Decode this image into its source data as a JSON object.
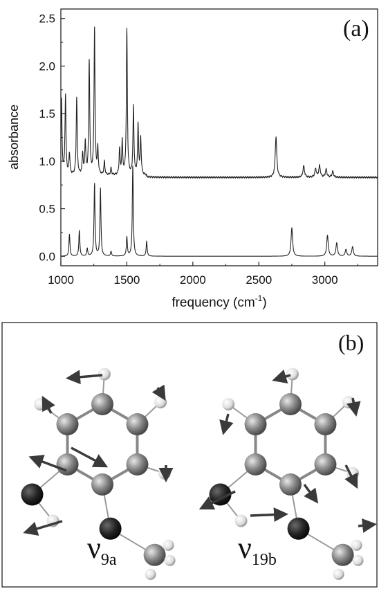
{
  "chart_data": {
    "type": "line",
    "panel_label": "(a)",
    "xlabel": "frequency (cm",
    "xlabel_superscript": "-1",
    "xlabel_suffix": ")",
    "ylabel": "absorbance",
    "xlim": [
      1000,
      3400
    ],
    "ylim": [
      -0.1,
      2.6
    ],
    "x_ticks": [
      1000,
      1500,
      2000,
      2500,
      3000
    ],
    "y_ticks": [
      0.0,
      0.5,
      1.0,
      1.5,
      2.0,
      2.5
    ],
    "x_tick_labels": [
      "1000",
      "1500",
      "2000",
      "2500",
      "3000"
    ],
    "y_tick_labels": [
      "0.0",
      "0.5",
      "1.0",
      "1.5",
      "2.0",
      "2.5"
    ],
    "grid": false,
    "legend": "none",
    "series": [
      {
        "baseline": 0.83,
        "color": "#222222",
        "peaks": [
          {
            "x": 1005,
            "y": 1.62
          },
          {
            "x": 1035,
            "y": 1.66
          },
          {
            "x": 1065,
            "y": 1.05
          },
          {
            "x": 1120,
            "y": 1.64
          },
          {
            "x": 1165,
            "y": 1.05
          },
          {
            "x": 1185,
            "y": 1.17
          },
          {
            "x": 1215,
            "y": 2.02
          },
          {
            "x": 1255,
            "y": 2.37
          },
          {
            "x": 1280,
            "y": 1.1
          },
          {
            "x": 1330,
            "y": 0.97
          },
          {
            "x": 1380,
            "y": 0.9
          },
          {
            "x": 1445,
            "y": 1.1
          },
          {
            "x": 1465,
            "y": 1.18
          },
          {
            "x": 1500,
            "y": 2.36
          },
          {
            "x": 1550,
            "y": 1.55
          },
          {
            "x": 1585,
            "y": 1.35
          },
          {
            "x": 1605,
            "y": 1.22
          },
          {
            "x": 2630,
            "y": 1.26
          },
          {
            "x": 2840,
            "y": 0.95
          },
          {
            "x": 2930,
            "y": 0.92
          },
          {
            "x": 2960,
            "y": 0.95
          },
          {
            "x": 3010,
            "y": 0.91
          },
          {
            "x": 3060,
            "y": 0.89
          }
        ]
      },
      {
        "baseline": 0.0,
        "color": "#222222",
        "peaks": [
          {
            "x": 1065,
            "y": 0.23
          },
          {
            "x": 1140,
            "y": 0.27
          },
          {
            "x": 1200,
            "y": 0.08
          },
          {
            "x": 1255,
            "y": 0.76
          },
          {
            "x": 1300,
            "y": 0.71
          },
          {
            "x": 1380,
            "y": 0.05
          },
          {
            "x": 1500,
            "y": 0.2
          },
          {
            "x": 1545,
            "y": 0.95
          },
          {
            "x": 1650,
            "y": 0.16
          },
          {
            "x": 2750,
            "y": 0.3
          },
          {
            "x": 3020,
            "y": 0.22
          },
          {
            "x": 3090,
            "y": 0.14
          },
          {
            "x": 3160,
            "y": 0.07
          },
          {
            "x": 3210,
            "y": 0.1
          }
        ]
      }
    ]
  },
  "panel_b": {
    "label": "(b)",
    "molecules": [
      {
        "mode_symbol": "ν",
        "mode_subscript": "9a",
        "heavy_atoms": [
          [
            0.0,
            -1.0
          ],
          [
            0.87,
            -0.5
          ],
          [
            0.87,
            0.5
          ],
          [
            0.0,
            1.0
          ],
          [
            -0.87,
            0.5
          ],
          [
            -0.87,
            -0.5
          ]
        ],
        "hydrogens": [
          [
            0.05,
            -1.75
          ],
          [
            1.45,
            -1.05
          ],
          [
            1.55,
            0.72
          ],
          [
            -1.55,
            -1.0
          ]
        ],
        "oxygens": [
          [
            -1.75,
            1.25
          ],
          [
            0.2,
            2.1
          ]
        ]
      },
      {
        "mode_symbol": "ν",
        "mode_subscript": "19b",
        "heavy_atoms": [
          [
            0.0,
            -1.0
          ],
          [
            0.87,
            -0.5
          ],
          [
            0.87,
            0.5
          ],
          [
            0.0,
            1.0
          ],
          [
            -0.87,
            0.5
          ],
          [
            -0.87,
            -0.5
          ]
        ],
        "hydrogens": [
          [
            0.05,
            -1.75
          ],
          [
            1.45,
            -1.05
          ],
          [
            1.55,
            0.72
          ],
          [
            -1.55,
            -1.0
          ]
        ],
        "oxygens": [
          [
            -1.75,
            1.25
          ],
          [
            0.2,
            2.1
          ]
        ]
      }
    ]
  },
  "colors": {
    "ink": "#222222",
    "carbon": "#8a8a8a",
    "hydrogen": "#e2e2e2",
    "oxygen": "#252525"
  }
}
